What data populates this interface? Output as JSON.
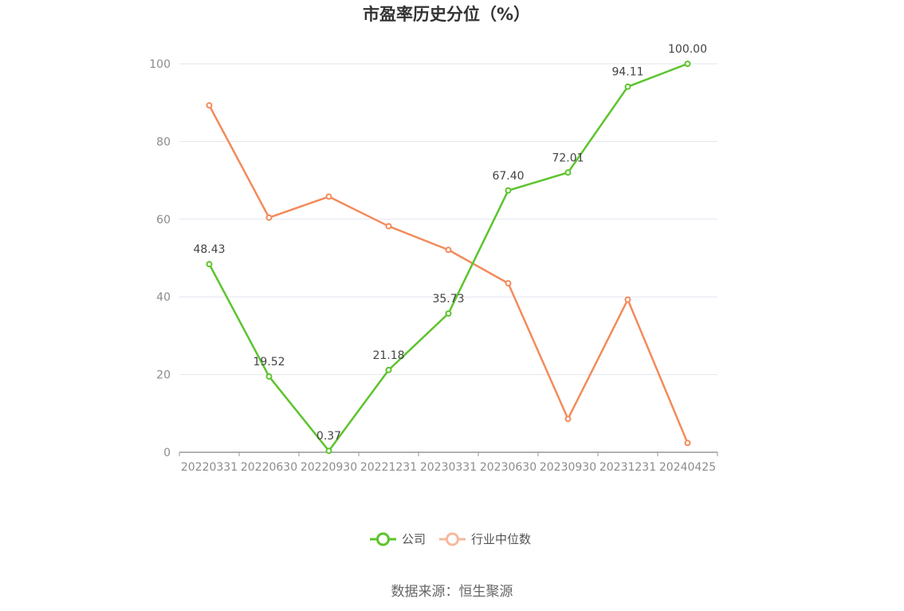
{
  "chart_data": {
    "type": "line",
    "title": "市盈率历史分位（%）",
    "categories": [
      "20220331",
      "20220630",
      "20220930",
      "20221231",
      "20230331",
      "20230630",
      "20230930",
      "20231231",
      "20240425"
    ],
    "ylim": [
      0,
      100
    ],
    "yticks": [
      0,
      20,
      40,
      60,
      80,
      100
    ],
    "grid": true,
    "legend_position": "bottom",
    "series": [
      {
        "name": "公司",
        "color": "#5cc42d",
        "values": [
          48.43,
          19.52,
          0.37,
          21.18,
          35.73,
          67.4,
          72.01,
          94.11,
          100.0
        ],
        "labels": [
          "48.43",
          "19.52",
          "0.37",
          "21.18",
          "35.73",
          "67.40",
          "72.01",
          "94.11",
          "100.00"
        ]
      },
      {
        "name": "行业中位数",
        "color": "#f28b5b",
        "legend_color": "#f7b99d",
        "values": [
          89.3,
          60.4,
          65.8,
          58.2,
          52.1,
          43.5,
          8.6,
          39.3,
          2.4
        ]
      }
    ]
  },
  "source": "数据来源：恒生聚源"
}
